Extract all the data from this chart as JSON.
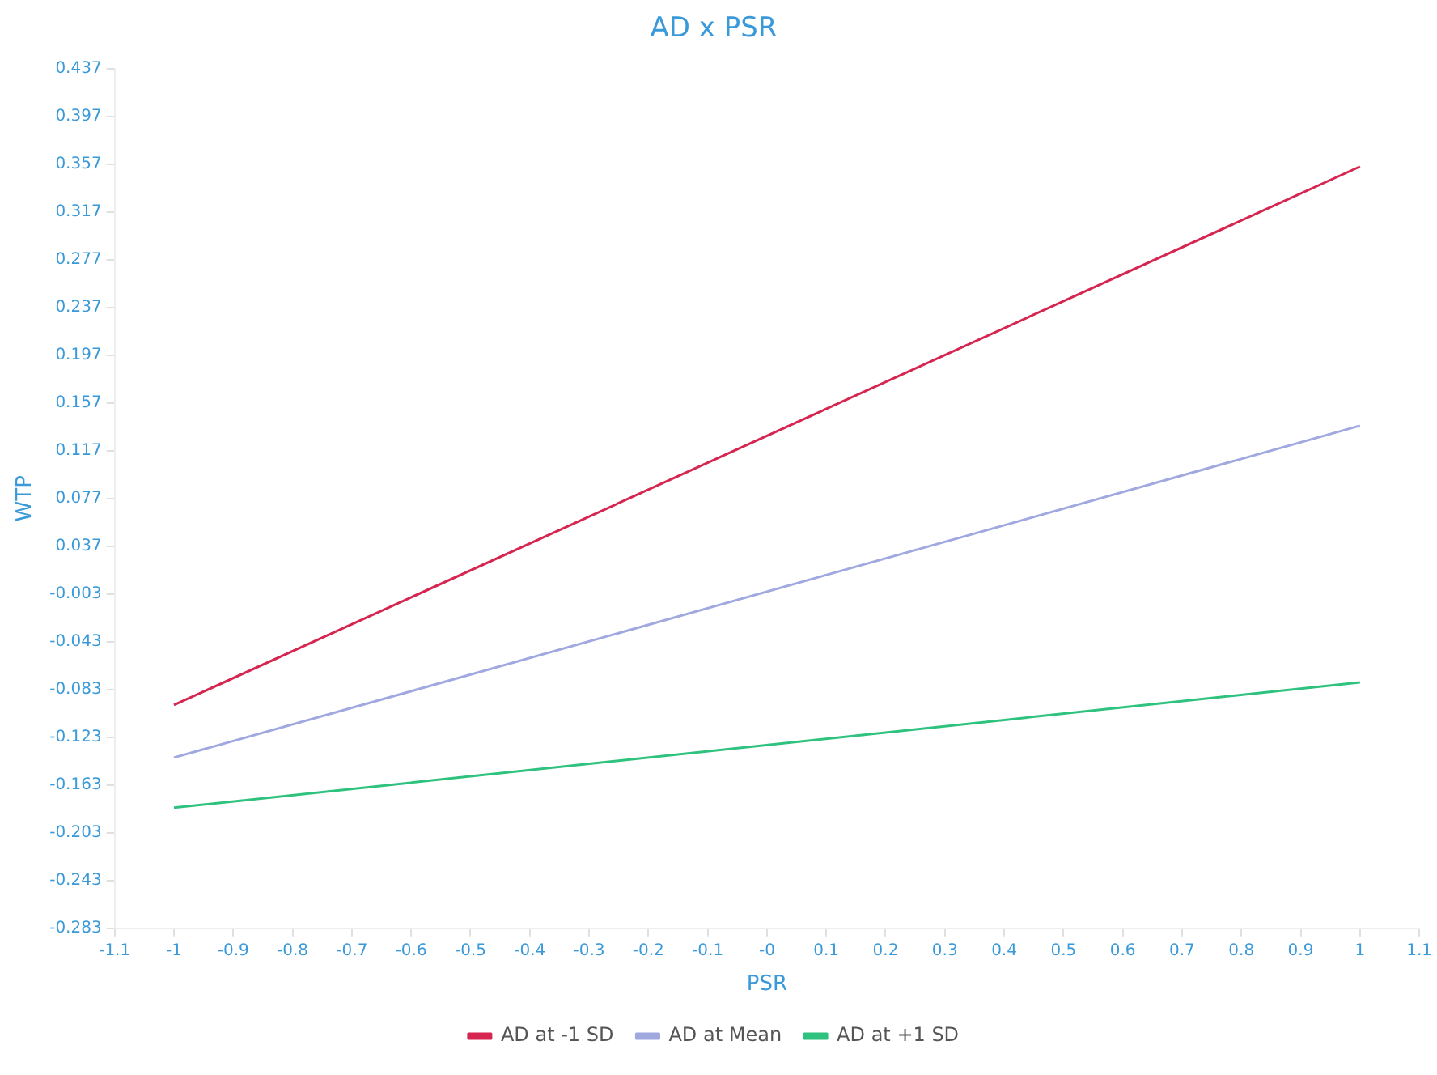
{
  "chart_data": {
    "type": "line",
    "title": "AD x PSR",
    "xlabel": "PSR",
    "ylabel": "WTP",
    "xlim": [
      -1.1,
      1.1
    ],
    "xticks": [
      -1.1,
      -1,
      -0.9,
      -0.8,
      -0.7,
      -0.6,
      -0.5,
      -0.4,
      -0.3,
      -0.2,
      -0.1,
      {
        "value": 0,
        "label": "-0"
      },
      0.1,
      0.2,
      0.3,
      0.4,
      0.5,
      0.6,
      0.7,
      0.8,
      0.9,
      1,
      1.1
    ],
    "ylim": [
      -0.283,
      0.437
    ],
    "yticks": [
      -0.283,
      -0.243,
      -0.203,
      -0.163,
      -0.123,
      -0.083,
      -0.043,
      -0.003,
      0.037,
      0.077,
      0.117,
      0.157,
      0.197,
      0.237,
      0.277,
      0.317,
      0.357,
      0.397,
      0.437
    ],
    "x": [
      -1,
      1
    ],
    "series": [
      {
        "name": "AD at -1 SD",
        "color": "#d6264f",
        "values": [
          -0.096,
          0.355
        ]
      },
      {
        "name": "AD at Mean",
        "color": "#a0a8e0",
        "values": [
          -0.14,
          0.138
        ]
      },
      {
        "name": "AD at +1 SD",
        "color": "#2ec27e",
        "values": [
          -0.182,
          -0.077
        ]
      }
    ],
    "legend": "bottom",
    "marker": "none",
    "grid": false
  }
}
